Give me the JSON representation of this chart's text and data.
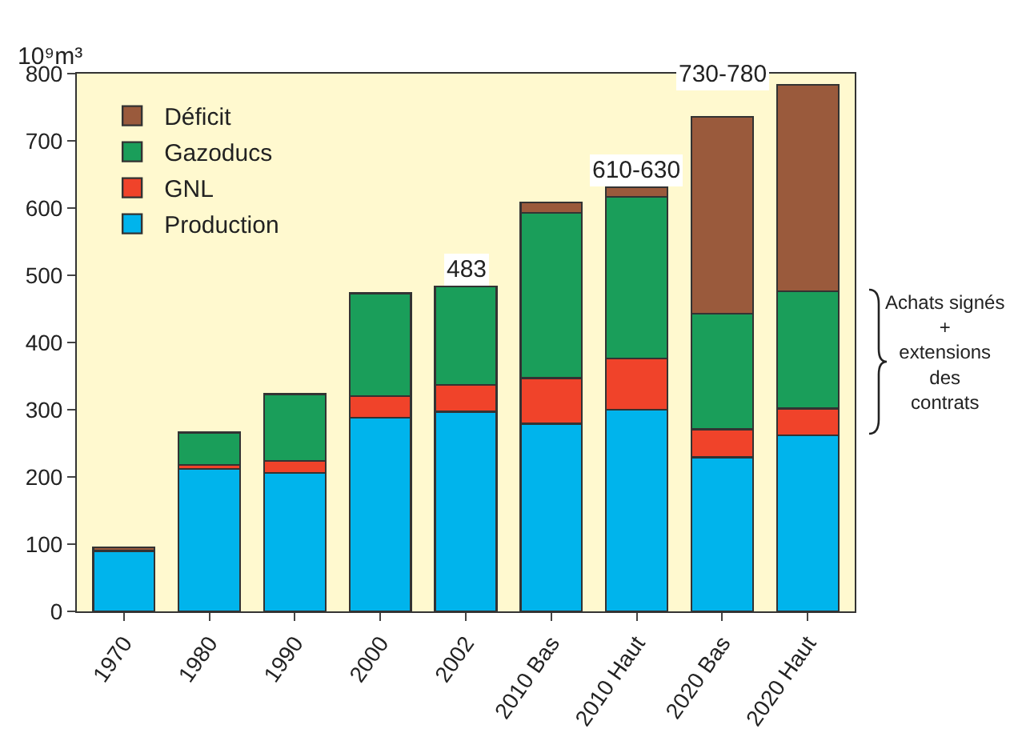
{
  "chart_data": {
    "type": "bar",
    "stacked": true,
    "ylabel": "10⁹m³",
    "categories": [
      "1970",
      "1980",
      "1990",
      "2000",
      "2002",
      "2010 Bas",
      "2010 Haut",
      "2020 Bas",
      "2020 Haut"
    ],
    "series": [
      {
        "name": "Production",
        "color": "#00b4ec",
        "values": [
          90,
          212,
          206,
          288,
          297,
          279,
          300,
          229,
          262
        ]
      },
      {
        "name": "GNL",
        "color": "#f0432a",
        "values": [
          null,
          6,
          18,
          32,
          40,
          68,
          76,
          42,
          40
        ]
      },
      {
        "name": "Gazoducs",
        "color": "#1a9e5a",
        "values": [
          null,
          48,
          99,
          153,
          146,
          246,
          241,
          172,
          174
        ]
      },
      {
        "name": "Déficit",
        "color": "#9a5a3c",
        "values": [
          5,
          null,
          null,
          null,
          null,
          15,
          14,
          293,
          307
        ]
      }
    ],
    "ylim": [
      0,
      800
    ],
    "yticks": [
      0,
      100,
      200,
      300,
      400,
      500,
      600,
      700,
      800
    ],
    "grid": false,
    "legend": "top left",
    "annotations": [
      {
        "text": "483",
        "x": "2002",
        "y": 483
      },
      {
        "text": "610-630",
        "x": "2010 Haut",
        "y": 631
      },
      "730-780",
      "Achats signés\n+\nextensions\ndes\ncontrats"
    ]
  }
}
